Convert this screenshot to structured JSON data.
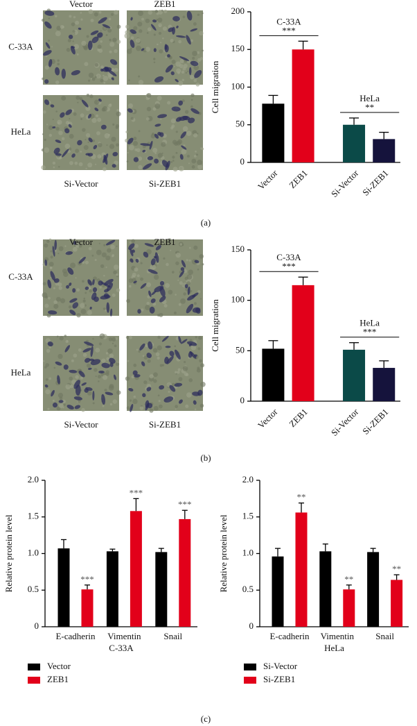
{
  "panels": [
    {
      "label": "(a)",
      "columns": [
        "Vector",
        "ZEB1"
      ],
      "rows": [
        "C-33A",
        "HeLa"
      ],
      "footer": [
        "Si-Vector",
        "Si-ZEB1"
      ]
    },
    {
      "label": "(b)",
      "columns": [
        "Vector",
        "ZEB1"
      ],
      "rows": [
        "C-33A",
        "HeLa"
      ],
      "footer": [
        "Si-Vector",
        "Si-ZEB1"
      ]
    },
    {
      "label": "(c)"
    }
  ],
  "chart_data": [
    {
      "type": "bar",
      "ylabel": "Cell migration",
      "categories": [
        "Vector",
        "ZEB1",
        "Si-Vector",
        "Si-ZEB1"
      ],
      "values": [
        78,
        150,
        50,
        31
      ],
      "errors": [
        11,
        11,
        9,
        9
      ],
      "colors": [
        "#000000",
        "#e2001a",
        "#0b4a48",
        "#15133c"
      ],
      "ylim": [
        0,
        200
      ],
      "yticks": [
        0,
        50,
        100,
        150,
        200
      ],
      "comparisons": [
        {
          "group": "C-33A",
          "significance": "***",
          "categories": [
            "Vector",
            "ZEB1"
          ]
        },
        {
          "group": "HeLa",
          "significance": "**",
          "categories": [
            "Si-Vector",
            "Si-ZEB1"
          ]
        }
      ]
    },
    {
      "type": "bar",
      "ylabel": "Cell migration",
      "categories": [
        "Vector",
        "ZEB1",
        "Si-Vector",
        "Si-ZEB1"
      ],
      "values": [
        52,
        115,
        51,
        33
      ],
      "errors": [
        8,
        8,
        7,
        7
      ],
      "colors": [
        "#000000",
        "#e2001a",
        "#0b4a48",
        "#15133c"
      ],
      "ylim": [
        0,
        150
      ],
      "yticks": [
        0,
        50,
        100,
        150
      ],
      "comparisons": [
        {
          "group": "C-33A",
          "significance": "***",
          "categories": [
            "Vector",
            "ZEB1"
          ]
        },
        {
          "group": "HeLa",
          "significance": "***",
          "categories": [
            "Si-Vector",
            "Si-ZEB1"
          ]
        }
      ]
    },
    {
      "type": "grouped-bar",
      "ylabel": "Relative protein level",
      "xlabel": "C-33A",
      "categories": [
        "E-cadherin",
        "Vimentin",
        "Snail"
      ],
      "series": [
        {
          "name": "Vector",
          "color": "#000000",
          "values": [
            1.07,
            1.03,
            1.02
          ],
          "errors": [
            0.12,
            0.03,
            0.05
          ]
        },
        {
          "name": "ZEB1",
          "color": "#e2001a",
          "values": [
            0.51,
            1.58,
            1.47
          ],
          "errors": [
            0.06,
            0.17,
            0.12
          ],
          "significance": [
            "***",
            "***",
            "***"
          ]
        }
      ],
      "ylim": [
        0,
        2
      ],
      "yticks": [
        0,
        0.5,
        {
          "value": 1,
          "label": "1.0"
        },
        1.5,
        {
          "value": 2,
          "label": "2.0"
        }
      ]
    },
    {
      "type": "grouped-bar",
      "ylabel": "Relative protein level",
      "xlabel": "HeLa",
      "categories": [
        "E-cadherin",
        "Vimentin",
        "Snail"
      ],
      "series": [
        {
          "name": "Si-Vector",
          "color": "#000000",
          "values": [
            0.96,
            1.03,
            1.02
          ],
          "errors": [
            0.11,
            0.1,
            0.05
          ]
        },
        {
          "name": "Si-ZEB1",
          "color": "#e2001a",
          "values": [
            1.56,
            0.51,
            0.64
          ],
          "errors": [
            0.13,
            0.06,
            0.07
          ],
          "significance": [
            "**",
            "**",
            "**"
          ]
        }
      ],
      "ylim": [
        0,
        2
      ],
      "yticks": [
        0,
        0.5,
        {
          "value": 1,
          "label": "1.0"
        },
        1.5,
        {
          "value": 2,
          "label": "2.0"
        }
      ]
    }
  ]
}
